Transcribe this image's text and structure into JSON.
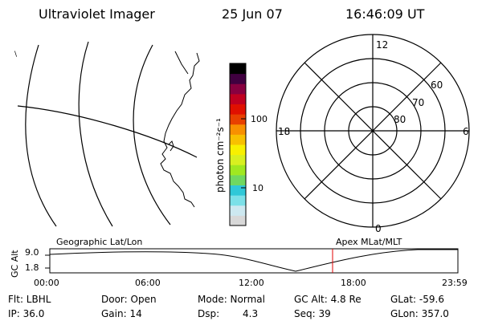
{
  "header": {
    "instrument": "Ultraviolet Imager",
    "date": "25 Jun 07",
    "time": "16:46:09 UT"
  },
  "colorbar": {
    "unit_label": "photon cm⁻²s⁻¹",
    "ticks": [
      "100",
      "10"
    ],
    "colors": [
      "#d8d8d8",
      "#cde8f0",
      "#7ce0e8",
      "#30c8d8",
      "#70d860",
      "#a0e820",
      "#d8f020",
      "#f8f000",
      "#f8c000",
      "#f89000",
      "#e84000",
      "#e01000",
      "#c00020",
      "#880040",
      "#400040",
      "#000000"
    ]
  },
  "polar_plot": {
    "mlt_labels": [
      "12",
      "18",
      "6",
      "0"
    ],
    "lat_labels": [
      "60",
      "70",
      "80"
    ]
  },
  "strip": {
    "ylabel": "GC Alt",
    "yticks": [
      "9.0",
      "1.8"
    ],
    "left_label": "Geographic Lat/Lon",
    "right_label": "Apex MLat/MLT",
    "xticks": [
      "00:00",
      "06:00",
      "12:00",
      "18:00",
      "23:59"
    ],
    "marker_color": "#e00000"
  },
  "info": {
    "flt": "Flt: LBHL",
    "ip": "IP: 36.0",
    "door": "Door: Open",
    "gain": "Gain: 14",
    "mode": "Mode: Normal",
    "dsp_label": "Dsp:",
    "dsp_value": "4.3",
    "gc_alt": "GC Alt: 4.8 Re",
    "seq": "Seq: 39",
    "glat": "GLat: -59.6",
    "glon": "GLon: 357.0"
  }
}
